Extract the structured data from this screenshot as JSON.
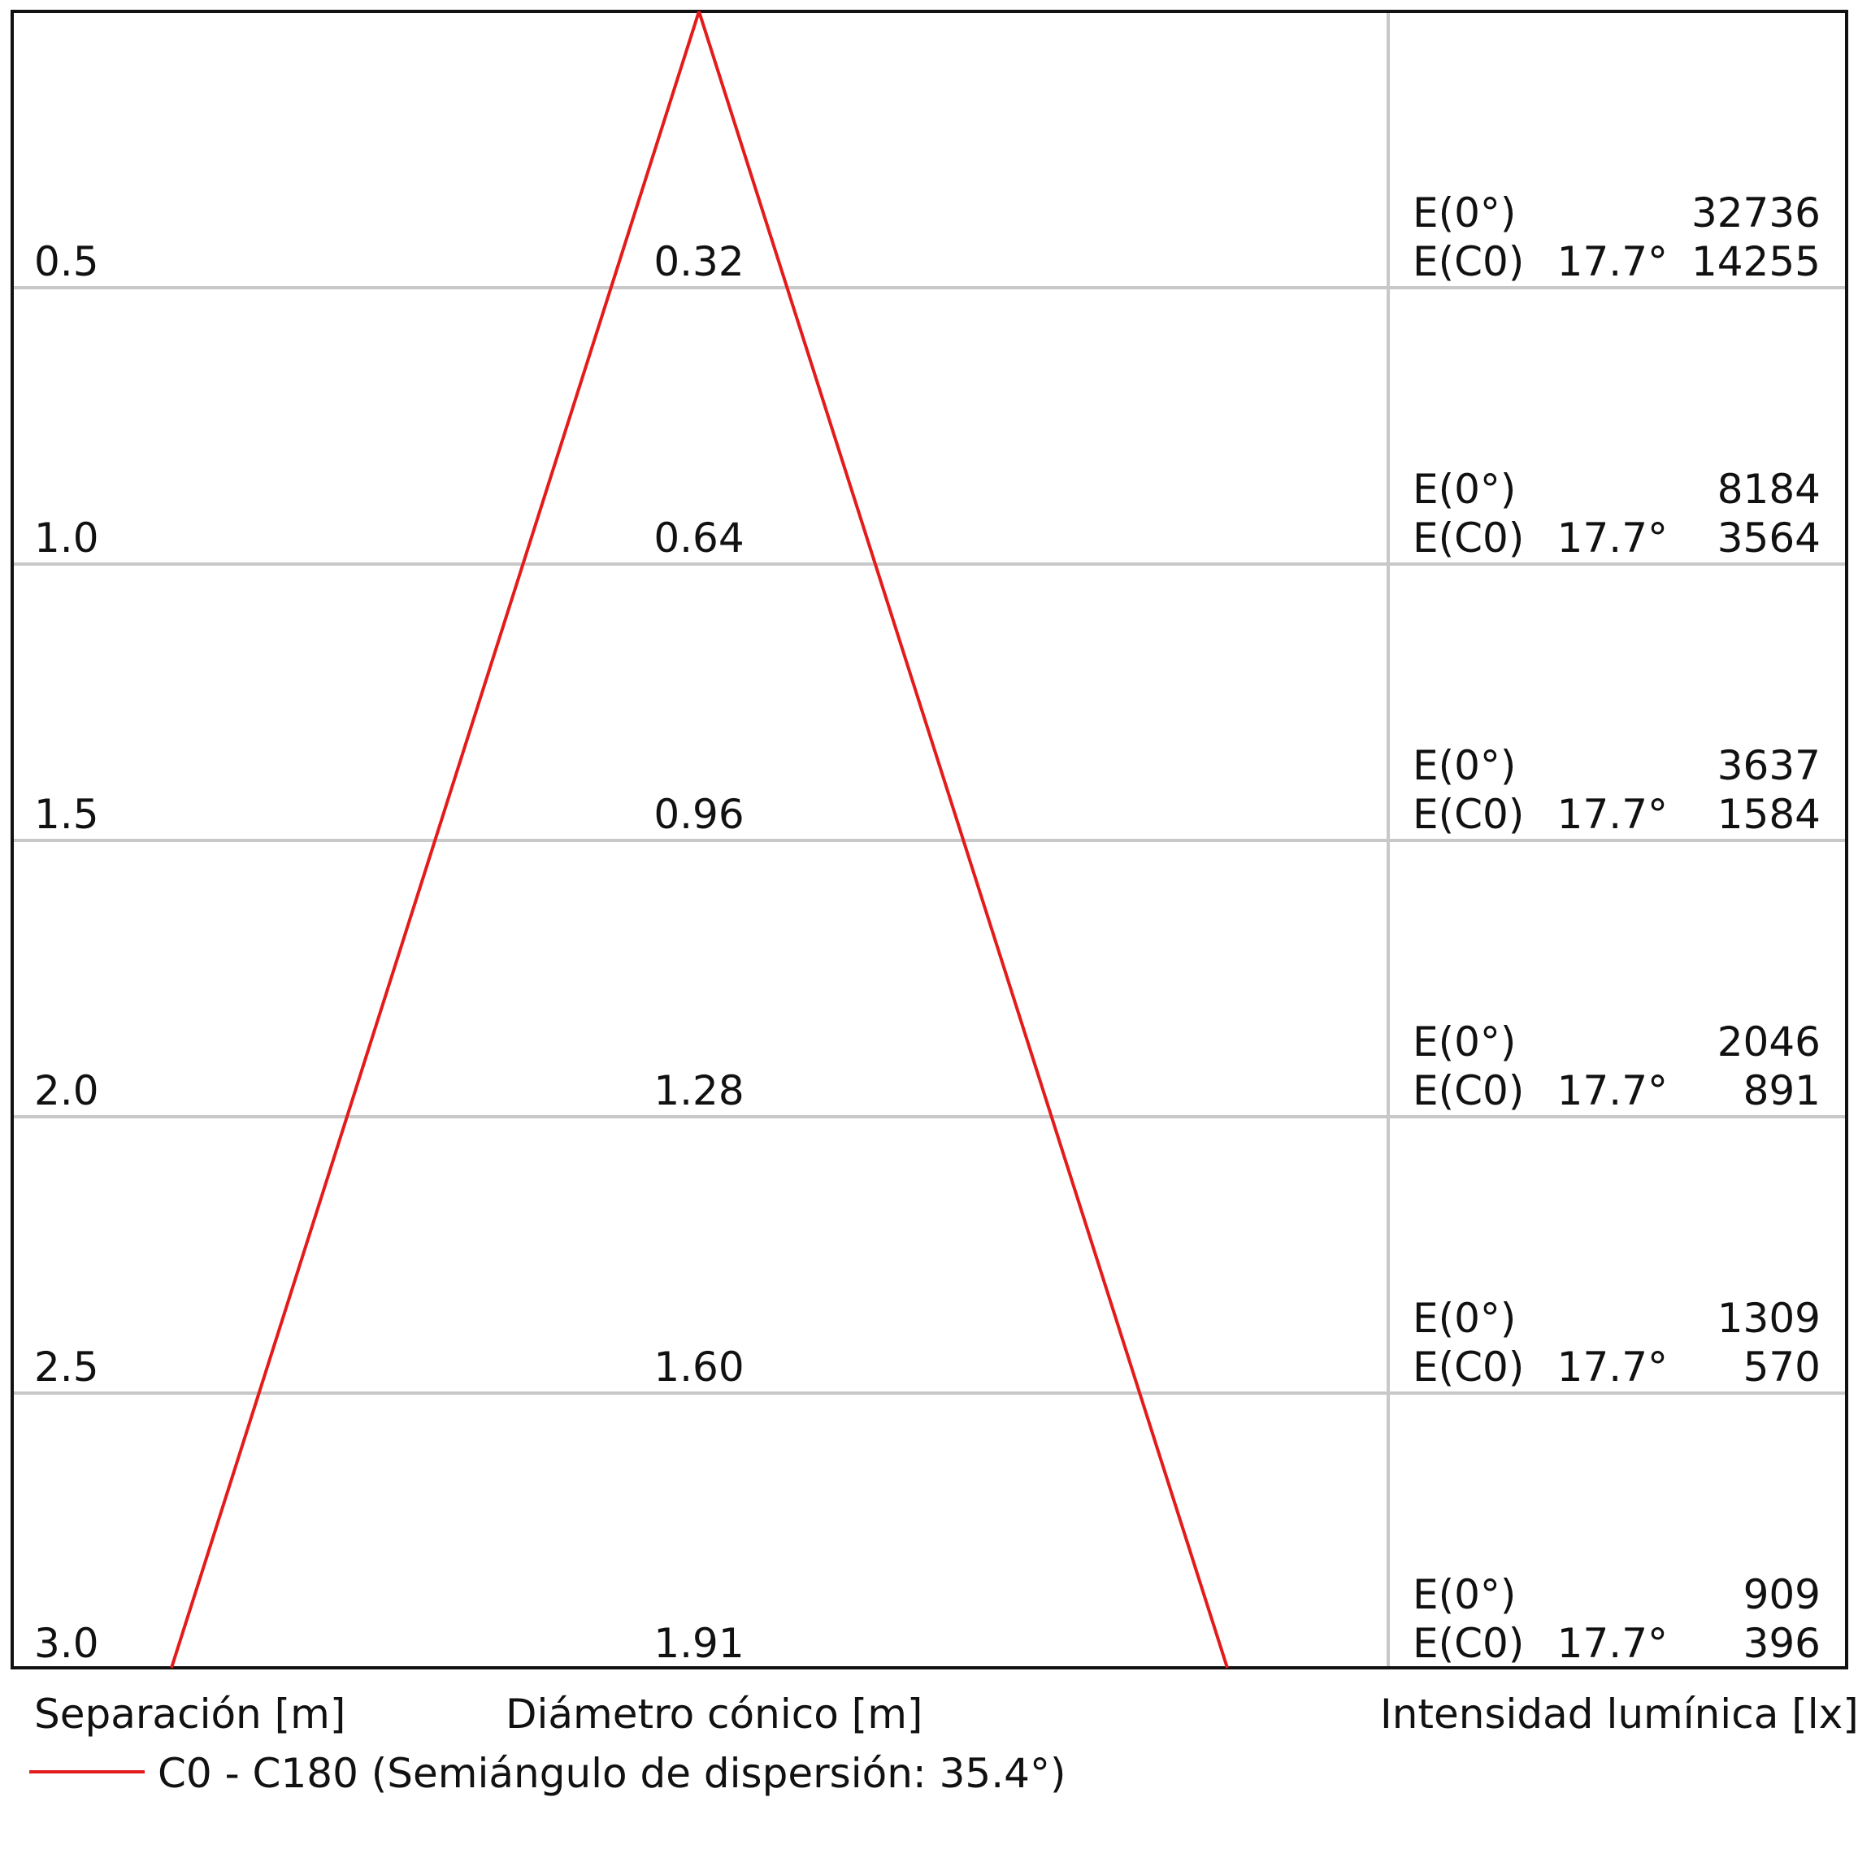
{
  "colors": {
    "beam": "#e31b1b",
    "frame": "#111111",
    "grid": "#c8c8c8"
  },
  "labels": {
    "separacion": "Separación [m]",
    "diametro": "Diámetro cónico [m]",
    "intensidad": "Intensidad lumínica [lx]"
  },
  "legend": {
    "text": "C0 - C180 (Semiángulo de dispersión: 35.4°)",
    "color": "#e31b1b"
  },
  "rows": [
    {
      "separacion": "0.5",
      "diametro": "0.32",
      "e0_label": "E(0°)",
      "e0_value": "32736",
      "ec0_label": "E(C0)",
      "ec0_angle": "17.7°",
      "ec0_value": "14255"
    },
    {
      "separacion": "1.0",
      "diametro": "0.64",
      "e0_label": "E(0°)",
      "e0_value": "8184",
      "ec0_label": "E(C0)",
      "ec0_angle": "17.7°",
      "ec0_value": "3564"
    },
    {
      "separacion": "1.5",
      "diametro": "0.96",
      "e0_label": "E(0°)",
      "e0_value": "3637",
      "ec0_label": "E(C0)",
      "ec0_angle": "17.7°",
      "ec0_value": "1584"
    },
    {
      "separacion": "2.0",
      "diametro": "1.28",
      "e0_label": "E(0°)",
      "e0_value": "2046",
      "ec0_label": "E(C0)",
      "ec0_angle": "17.7°",
      "ec0_value": "891"
    },
    {
      "separacion": "2.5",
      "diametro": "1.60",
      "e0_label": "E(0°)",
      "e0_value": "1309",
      "ec0_label": "E(C0)",
      "ec0_angle": "17.7°",
      "ec0_value": "570"
    },
    {
      "separacion": "3.0",
      "diametro": "1.91",
      "e0_label": "E(0°)",
      "e0_value": "909",
      "ec0_label": "E(C0)",
      "ec0_angle": "17.7°",
      "ec0_value": "396"
    }
  ]
}
